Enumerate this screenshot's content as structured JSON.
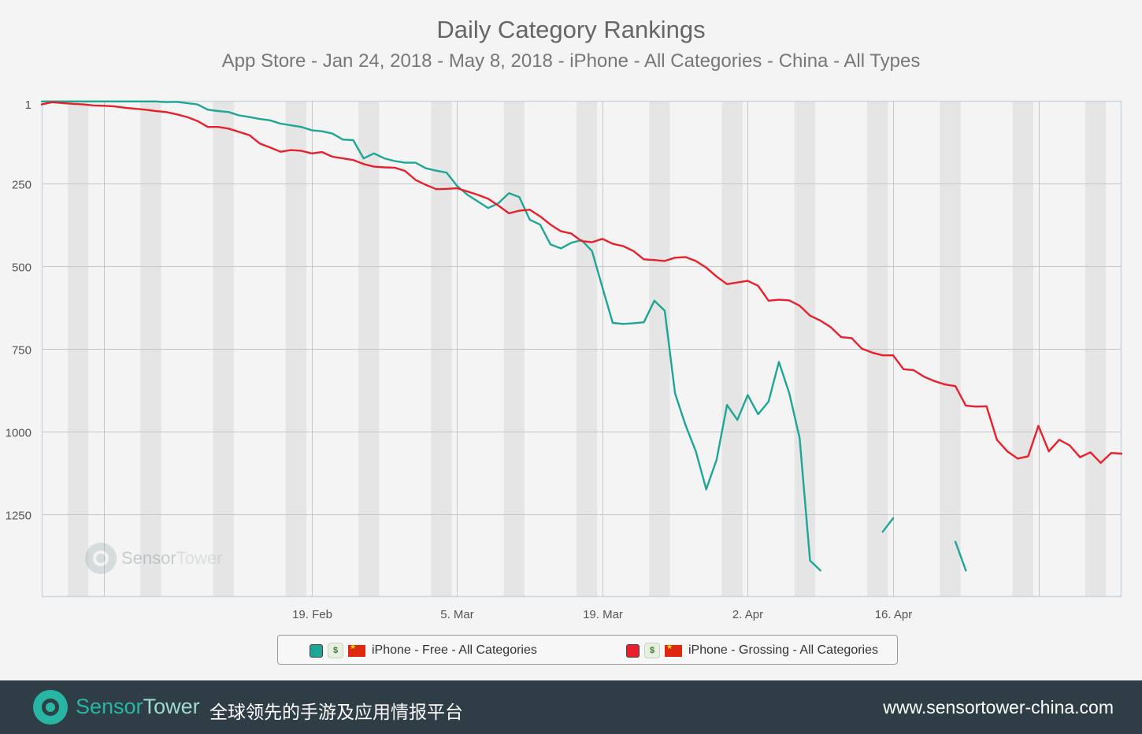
{
  "page": {
    "title": "Daily Category Rankings",
    "subtitle": "App Store - Jan 24, 2018 - May 8, 2018 - iPhone - All Categories - China - All Types"
  },
  "watermark": {
    "brand_a": "Sensor",
    "brand_b": "Tower"
  },
  "footer": {
    "brand_a": "Sensor",
    "brand_b": "Tower",
    "tagline": "全球领先的手游及应用情报平台",
    "url": "www.sensortower-china.com",
    "background_color": "#2f3d46",
    "brand_color": "#28b5a4"
  },
  "legend": [
    {
      "label": "iPhone - Free - All Categories",
      "color": "#1fa595",
      "icon": "app-icon",
      "flag": "china-flag"
    },
    {
      "label": "iPhone - Grossing - All Categories",
      "color": "#e8202c",
      "icon": "app-icon",
      "flag": "china-flag"
    }
  ],
  "chart_data": {
    "type": "line",
    "title": "Daily Category Rankings",
    "subtitle": "App Store - Jan 24, 2018 - May 8, 2018 - iPhone - All Categories - China - All Types",
    "x_start": "2018-01-24",
    "x_end": "2018-05-08",
    "x_ticks": [
      {
        "date": "2018-02-19",
        "label": "19. Feb"
      },
      {
        "date": "2018-03-05",
        "label": "5. Mar"
      },
      {
        "date": "2018-03-19",
        "label": "19. Mar"
      },
      {
        "date": "2018-04-02",
        "label": "2. Apr"
      },
      {
        "date": "2018-04-16",
        "label": "16. Apr"
      }
    ],
    "y_ticks": [
      1,
      250,
      500,
      750,
      1000,
      1250
    ],
    "ylim": [
      1,
      1500
    ],
    "y_reversed": true,
    "weekend_shading": true,
    "grid": true,
    "legend_position": "bottom",
    "series": [
      {
        "name": "iPhone - Free - All Categories",
        "color": "#1fa595",
        "points": [
          [
            "2018-01-24",
            3
          ],
          [
            "2018-01-25",
            3
          ],
          [
            "2018-01-26",
            3
          ],
          [
            "2018-01-27",
            3
          ],
          [
            "2018-01-28",
            3
          ],
          [
            "2018-01-29",
            3
          ],
          [
            "2018-01-30",
            3
          ],
          [
            "2018-01-31",
            3
          ],
          [
            "2018-02-01",
            3
          ],
          [
            "2018-02-02",
            3
          ],
          [
            "2018-02-03",
            3
          ],
          [
            "2018-02-04",
            3
          ],
          [
            "2018-02-05",
            5
          ],
          [
            "2018-02-06",
            4
          ],
          [
            "2018-02-07",
            8
          ],
          [
            "2018-02-08",
            12
          ],
          [
            "2018-02-09",
            28
          ],
          [
            "2018-02-10",
            32
          ],
          [
            "2018-02-11",
            35
          ],
          [
            "2018-02-12",
            45
          ],
          [
            "2018-02-13",
            50
          ],
          [
            "2018-02-14",
            56
          ],
          [
            "2018-02-15",
            60
          ],
          [
            "2018-02-16",
            70
          ],
          [
            "2018-02-17",
            75
          ],
          [
            "2018-02-18",
            80
          ],
          [
            "2018-02-19",
            90
          ],
          [
            "2018-02-20",
            93
          ],
          [
            "2018-02-21",
            100
          ],
          [
            "2018-02-22",
            118
          ],
          [
            "2018-02-23",
            120
          ],
          [
            "2018-02-24",
            175
          ],
          [
            "2018-02-25",
            160
          ],
          [
            "2018-02-26",
            175
          ],
          [
            "2018-02-27",
            183
          ],
          [
            "2018-02-28",
            188
          ],
          [
            "2018-03-01",
            188
          ],
          [
            "2018-03-02",
            205
          ],
          [
            "2018-03-03",
            212
          ],
          [
            "2018-03-04",
            218
          ],
          [
            "2018-03-05",
            258
          ],
          [
            "2018-03-06",
            285
          ],
          [
            "2018-03-07",
            305
          ],
          [
            "2018-03-08",
            325
          ],
          [
            "2018-03-09",
            310
          ],
          [
            "2018-03-10",
            280
          ],
          [
            "2018-03-11",
            292
          ],
          [
            "2018-03-12",
            360
          ],
          [
            "2018-03-13",
            375
          ],
          [
            "2018-03-14",
            435
          ],
          [
            "2018-03-15",
            447
          ],
          [
            "2018-03-16",
            430
          ],
          [
            "2018-03-17",
            422
          ],
          [
            "2018-03-18",
            455
          ],
          [
            "2018-03-19",
            565
          ],
          [
            "2018-03-20",
            672
          ],
          [
            "2018-03-21",
            675
          ],
          [
            "2018-03-22",
            673
          ],
          [
            "2018-03-23",
            670
          ],
          [
            "2018-03-24",
            605
          ],
          [
            "2018-03-25",
            635
          ],
          [
            "2018-03-26",
            885
          ],
          [
            "2018-03-27",
            980
          ],
          [
            "2018-03-28",
            1060
          ],
          [
            "2018-03-29",
            1175
          ],
          [
            "2018-03-30",
            1085
          ],
          [
            "2018-03-31",
            920
          ],
          [
            "2018-04-01",
            965
          ],
          [
            "2018-04-02",
            890
          ],
          [
            "2018-04-03",
            948
          ],
          [
            "2018-04-04",
            910
          ],
          [
            "2018-04-05",
            790
          ],
          [
            "2018-04-06",
            885
          ],
          [
            "2018-04-07",
            1020
          ],
          [
            "2018-04-08",
            1390
          ],
          [
            "2018-04-09",
            1420
          ],
          [
            "2018-04-10",
            null
          ],
          [
            "2018-04-11",
            null
          ],
          [
            "2018-04-12",
            null
          ],
          [
            "2018-04-13",
            null
          ],
          [
            "2018-04-14",
            null
          ],
          [
            "2018-04-15",
            1303
          ],
          [
            "2018-04-16",
            1262
          ],
          [
            "2018-04-17",
            null
          ],
          [
            "2018-04-18",
            null
          ],
          [
            "2018-04-19",
            null
          ],
          [
            "2018-04-20",
            null
          ],
          [
            "2018-04-21",
            null
          ],
          [
            "2018-04-22",
            1333
          ],
          [
            "2018-04-23",
            1420
          ],
          [
            "2018-04-24",
            null
          ]
        ]
      },
      {
        "name": "iPhone - Grossing - All Categories",
        "color": "#e8202c",
        "points": [
          [
            "2018-01-24",
            12
          ],
          [
            "2018-01-25",
            5
          ],
          [
            "2018-01-26",
            8
          ],
          [
            "2018-01-27",
            10
          ],
          [
            "2018-01-28",
            12
          ],
          [
            "2018-01-29",
            15
          ],
          [
            "2018-01-30",
            16
          ],
          [
            "2018-01-31",
            18
          ],
          [
            "2018-02-01",
            22
          ],
          [
            "2018-02-02",
            25
          ],
          [
            "2018-02-03",
            28
          ],
          [
            "2018-02-04",
            32
          ],
          [
            "2018-02-05",
            35
          ],
          [
            "2018-02-06",
            42
          ],
          [
            "2018-02-07",
            50
          ],
          [
            "2018-02-08",
            62
          ],
          [
            "2018-02-09",
            80
          ],
          [
            "2018-02-10",
            80
          ],
          [
            "2018-02-11",
            85
          ],
          [
            "2018-02-12",
            95
          ],
          [
            "2018-02-13",
            105
          ],
          [
            "2018-02-14",
            130
          ],
          [
            "2018-02-15",
            142
          ],
          [
            "2018-02-16",
            155
          ],
          [
            "2018-02-17",
            150
          ],
          [
            "2018-02-18",
            152
          ],
          [
            "2018-02-19",
            160
          ],
          [
            "2018-02-20",
            156
          ],
          [
            "2018-02-21",
            170
          ],
          [
            "2018-02-22",
            175
          ],
          [
            "2018-02-23",
            180
          ],
          [
            "2018-02-24",
            192
          ],
          [
            "2018-02-25",
            200
          ],
          [
            "2018-02-26",
            202
          ],
          [
            "2018-02-27",
            203
          ],
          [
            "2018-02-28",
            213
          ],
          [
            "2018-03-01",
            240
          ],
          [
            "2018-03-02",
            255
          ],
          [
            "2018-03-03",
            268
          ],
          [
            "2018-03-04",
            267
          ],
          [
            "2018-03-05",
            265
          ],
          [
            "2018-03-06",
            275
          ],
          [
            "2018-03-07",
            285
          ],
          [
            "2018-03-08",
            297
          ],
          [
            "2018-03-09",
            318
          ],
          [
            "2018-03-10",
            341
          ],
          [
            "2018-03-11",
            333
          ],
          [
            "2018-03-12",
            330
          ],
          [
            "2018-03-13",
            350
          ],
          [
            "2018-03-14",
            375
          ],
          [
            "2018-03-15",
            395
          ],
          [
            "2018-03-16",
            402
          ],
          [
            "2018-03-17",
            425
          ],
          [
            "2018-03-18",
            428
          ],
          [
            "2018-03-19",
            418
          ],
          [
            "2018-03-20",
            433
          ],
          [
            "2018-03-21",
            440
          ],
          [
            "2018-03-22",
            455
          ],
          [
            "2018-03-23",
            480
          ],
          [
            "2018-03-24",
            482
          ],
          [
            "2018-03-25",
            485
          ],
          [
            "2018-03-26",
            475
          ],
          [
            "2018-03-27",
            473
          ],
          [
            "2018-03-28",
            485
          ],
          [
            "2018-03-29",
            505
          ],
          [
            "2018-03-30",
            532
          ],
          [
            "2018-03-31",
            555
          ],
          [
            "2018-04-01",
            550
          ],
          [
            "2018-04-02",
            545
          ],
          [
            "2018-04-03",
            560
          ],
          [
            "2018-04-04",
            605
          ],
          [
            "2018-04-05",
            602
          ],
          [
            "2018-04-06",
            604
          ],
          [
            "2018-04-07",
            620
          ],
          [
            "2018-04-08",
            650
          ],
          [
            "2018-04-09",
            665
          ],
          [
            "2018-04-10",
            685
          ],
          [
            "2018-04-11",
            715
          ],
          [
            "2018-04-12",
            718
          ],
          [
            "2018-04-13",
            750
          ],
          [
            "2018-04-14",
            762
          ],
          [
            "2018-04-15",
            770
          ],
          [
            "2018-04-16",
            770
          ],
          [
            "2018-04-17",
            812
          ],
          [
            "2018-04-18",
            815
          ],
          [
            "2018-04-19",
            835
          ],
          [
            "2018-04-20",
            848
          ],
          [
            "2018-04-21",
            858
          ],
          [
            "2018-04-22",
            863
          ],
          [
            "2018-04-23",
            922
          ],
          [
            "2018-04-24",
            925
          ],
          [
            "2018-04-25",
            924
          ],
          [
            "2018-04-26",
            1025
          ],
          [
            "2018-04-27",
            1060
          ],
          [
            "2018-04-28",
            1082
          ],
          [
            "2018-04-29",
            1075
          ],
          [
            "2018-04-30",
            983
          ],
          [
            "2018-05-01",
            1060
          ],
          [
            "2018-05-02",
            1025
          ],
          [
            "2018-05-03",
            1042
          ],
          [
            "2018-05-04",
            1078
          ],
          [
            "2018-05-05",
            1063
          ],
          [
            "2018-05-06",
            1095
          ],
          [
            "2018-05-07",
            1065
          ],
          [
            "2018-05-08",
            1067
          ]
        ]
      }
    ]
  }
}
